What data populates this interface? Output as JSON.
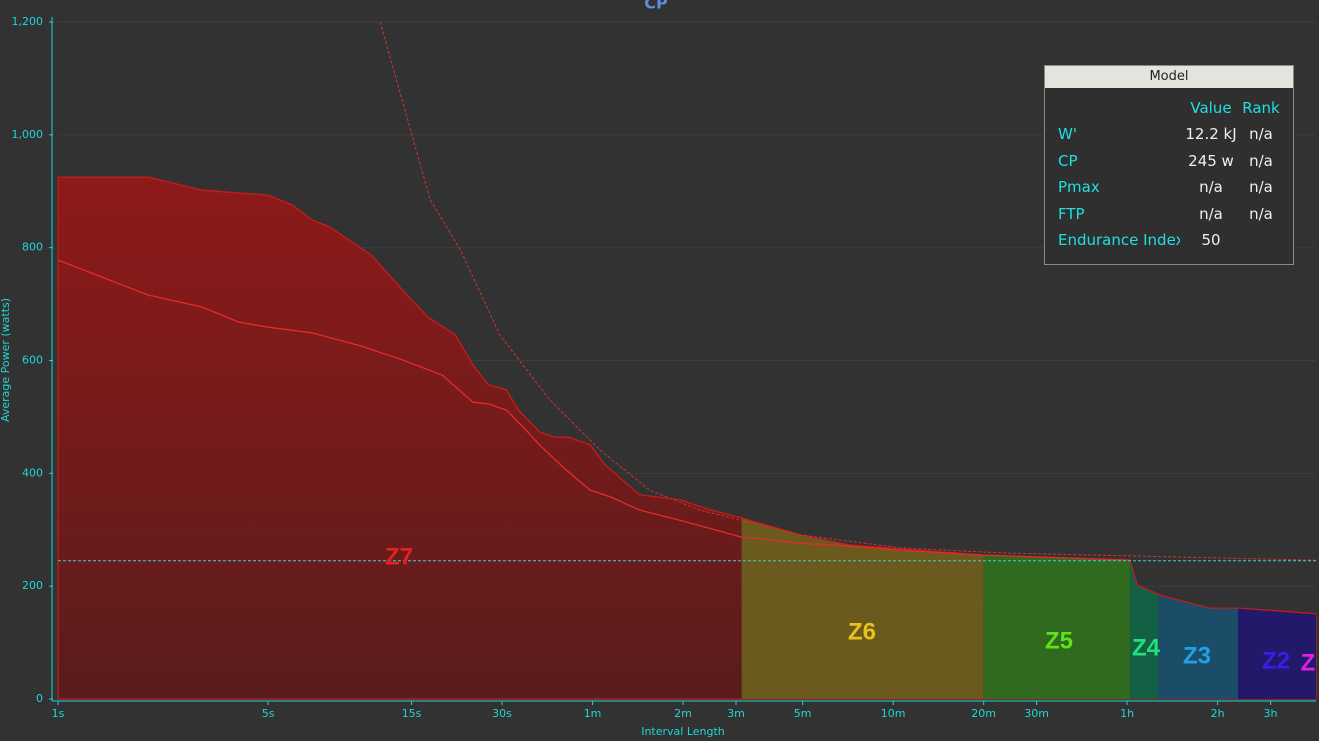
{
  "chart_data": {
    "type": "area",
    "title": "CP",
    "x_label": "Interval Length",
    "y_label": "Average Power (watts)",
    "xlim": [
      1,
      15300
    ],
    "xlog": true,
    "xticks": [
      {
        "value": 1,
        "label": "1s"
      },
      {
        "value": 5,
        "label": "5s"
      },
      {
        "value": 15,
        "label": "15s"
      },
      {
        "value": 30,
        "label": "30s"
      },
      {
        "value": 60,
        "label": "1m"
      },
      {
        "value": 120,
        "label": "2m"
      },
      {
        "value": 180,
        "label": "3m"
      },
      {
        "value": 300,
        "label": "5m"
      },
      {
        "value": 600,
        "label": "10m"
      },
      {
        "value": 1200,
        "label": "20m"
      },
      {
        "value": 1800,
        "label": "30m"
      },
      {
        "value": 3600,
        "label": "1h"
      },
      {
        "value": 7200,
        "label": "2h"
      },
      {
        "value": 10800,
        "label": "3h"
      }
    ],
    "ylim": [
      0,
      1200
    ],
    "yticks": [
      0,
      200,
      400,
      600,
      800,
      {
        "value": 1000,
        "label": "1,000"
      },
      {
        "value": 1200,
        "label": "1,200"
      }
    ],
    "grid": true,
    "series": [
      {
        "color": "#c41c1c",
        "fill": true,
        "x": [
          1,
          2,
          3,
          5,
          6,
          7,
          8,
          11,
          14,
          17,
          21,
          24,
          27,
          31,
          34,
          40,
          45,
          50,
          59,
          66,
          86,
          117,
          148,
          188,
          294,
          431,
          632,
          1200,
          3683,
          3886,
          4635,
          6795,
          8555,
          15300
        ],
        "values": [
          925,
          925,
          902,
          893,
          876,
          849,
          837,
          787,
          725,
          677,
          645,
          592,
          557,
          548,
          512,
          473,
          464,
          464,
          450,
          415,
          362,
          353,
          335,
          321,
          291,
          273,
          266,
          255,
          246,
          202,
          184,
          161,
          161,
          151
        ]
      },
      {
        "color": "#e52a2a",
        "x": [
          1,
          2,
          3,
          4,
          5,
          7,
          10,
          14,
          19,
          24,
          27,
          31,
          36,
          40,
          49,
          59,
          69,
          86,
          117,
          188,
          233,
          294,
          431,
          632,
          1200,
          3683
        ],
        "values": [
          778,
          716,
          695,
          668,
          659,
          649,
          627,
          601,
          574,
          526,
          523,
          512,
          477,
          450,
          406,
          370,
          358,
          335,
          317,
          287,
          282,
          276,
          271,
          264,
          255,
          246
        ]
      },
      {
        "color": "#d23232",
        "dashed": true,
        "x": [
          11.8,
          17.3,
          21.8,
          29.5,
          43.3,
          63.6,
          93,
          136,
          188,
          294,
          632,
          1364,
          15300
        ],
        "values": [
          1200,
          885,
          796,
          645,
          530,
          441,
          370,
          335,
          317,
          291,
          268,
          259,
          246
        ]
      }
    ],
    "cp_line": 245,
    "cp_line_color": "#3fd0d0",
    "zones": [
      {
        "name": "Z7",
        "start": 1,
        "end": 188,
        "color": "#8e1a1a",
        "label_color": "#e42020"
      },
      {
        "name": "Z6",
        "start": 188,
        "end": 1200,
        "color": "#6b5a1e",
        "label_color": "#e8c21a"
      },
      {
        "name": "Z5",
        "start": 1200,
        "end": 3683,
        "color": "#2f6a1f",
        "label_color": "#5ee01a"
      },
      {
        "name": "Z4",
        "start": 3683,
        "end": 4562,
        "color": "#146045",
        "label_color": "#1ee27a"
      },
      {
        "name": "Z3",
        "start": 4562,
        "end": 8420,
        "color": "#1b4d69",
        "label_color": "#1ea2e8"
      },
      {
        "name": "Z2",
        "start": 8420,
        "end": 15300,
        "color": "#23196a",
        "label_color": "#3a1ee8"
      },
      {
        "name": "Z",
        "start": 15300,
        "end": 15300,
        "color": "#4a1a6a",
        "label_color": "#e01ee0"
      }
    ]
  },
  "model_table": {
    "title": "Model",
    "columns": [
      "Value",
      "Rank"
    ],
    "rows": [
      [
        "W'",
        "12.2 kJ",
        "n/a"
      ],
      [
        "CP",
        "245 w",
        "n/a"
      ],
      [
        "Pmax",
        "n/a",
        "n/a"
      ],
      [
        "FTP",
        "n/a",
        "n/a"
      ],
      [
        "Endurance Index",
        "50"
      ]
    ]
  }
}
